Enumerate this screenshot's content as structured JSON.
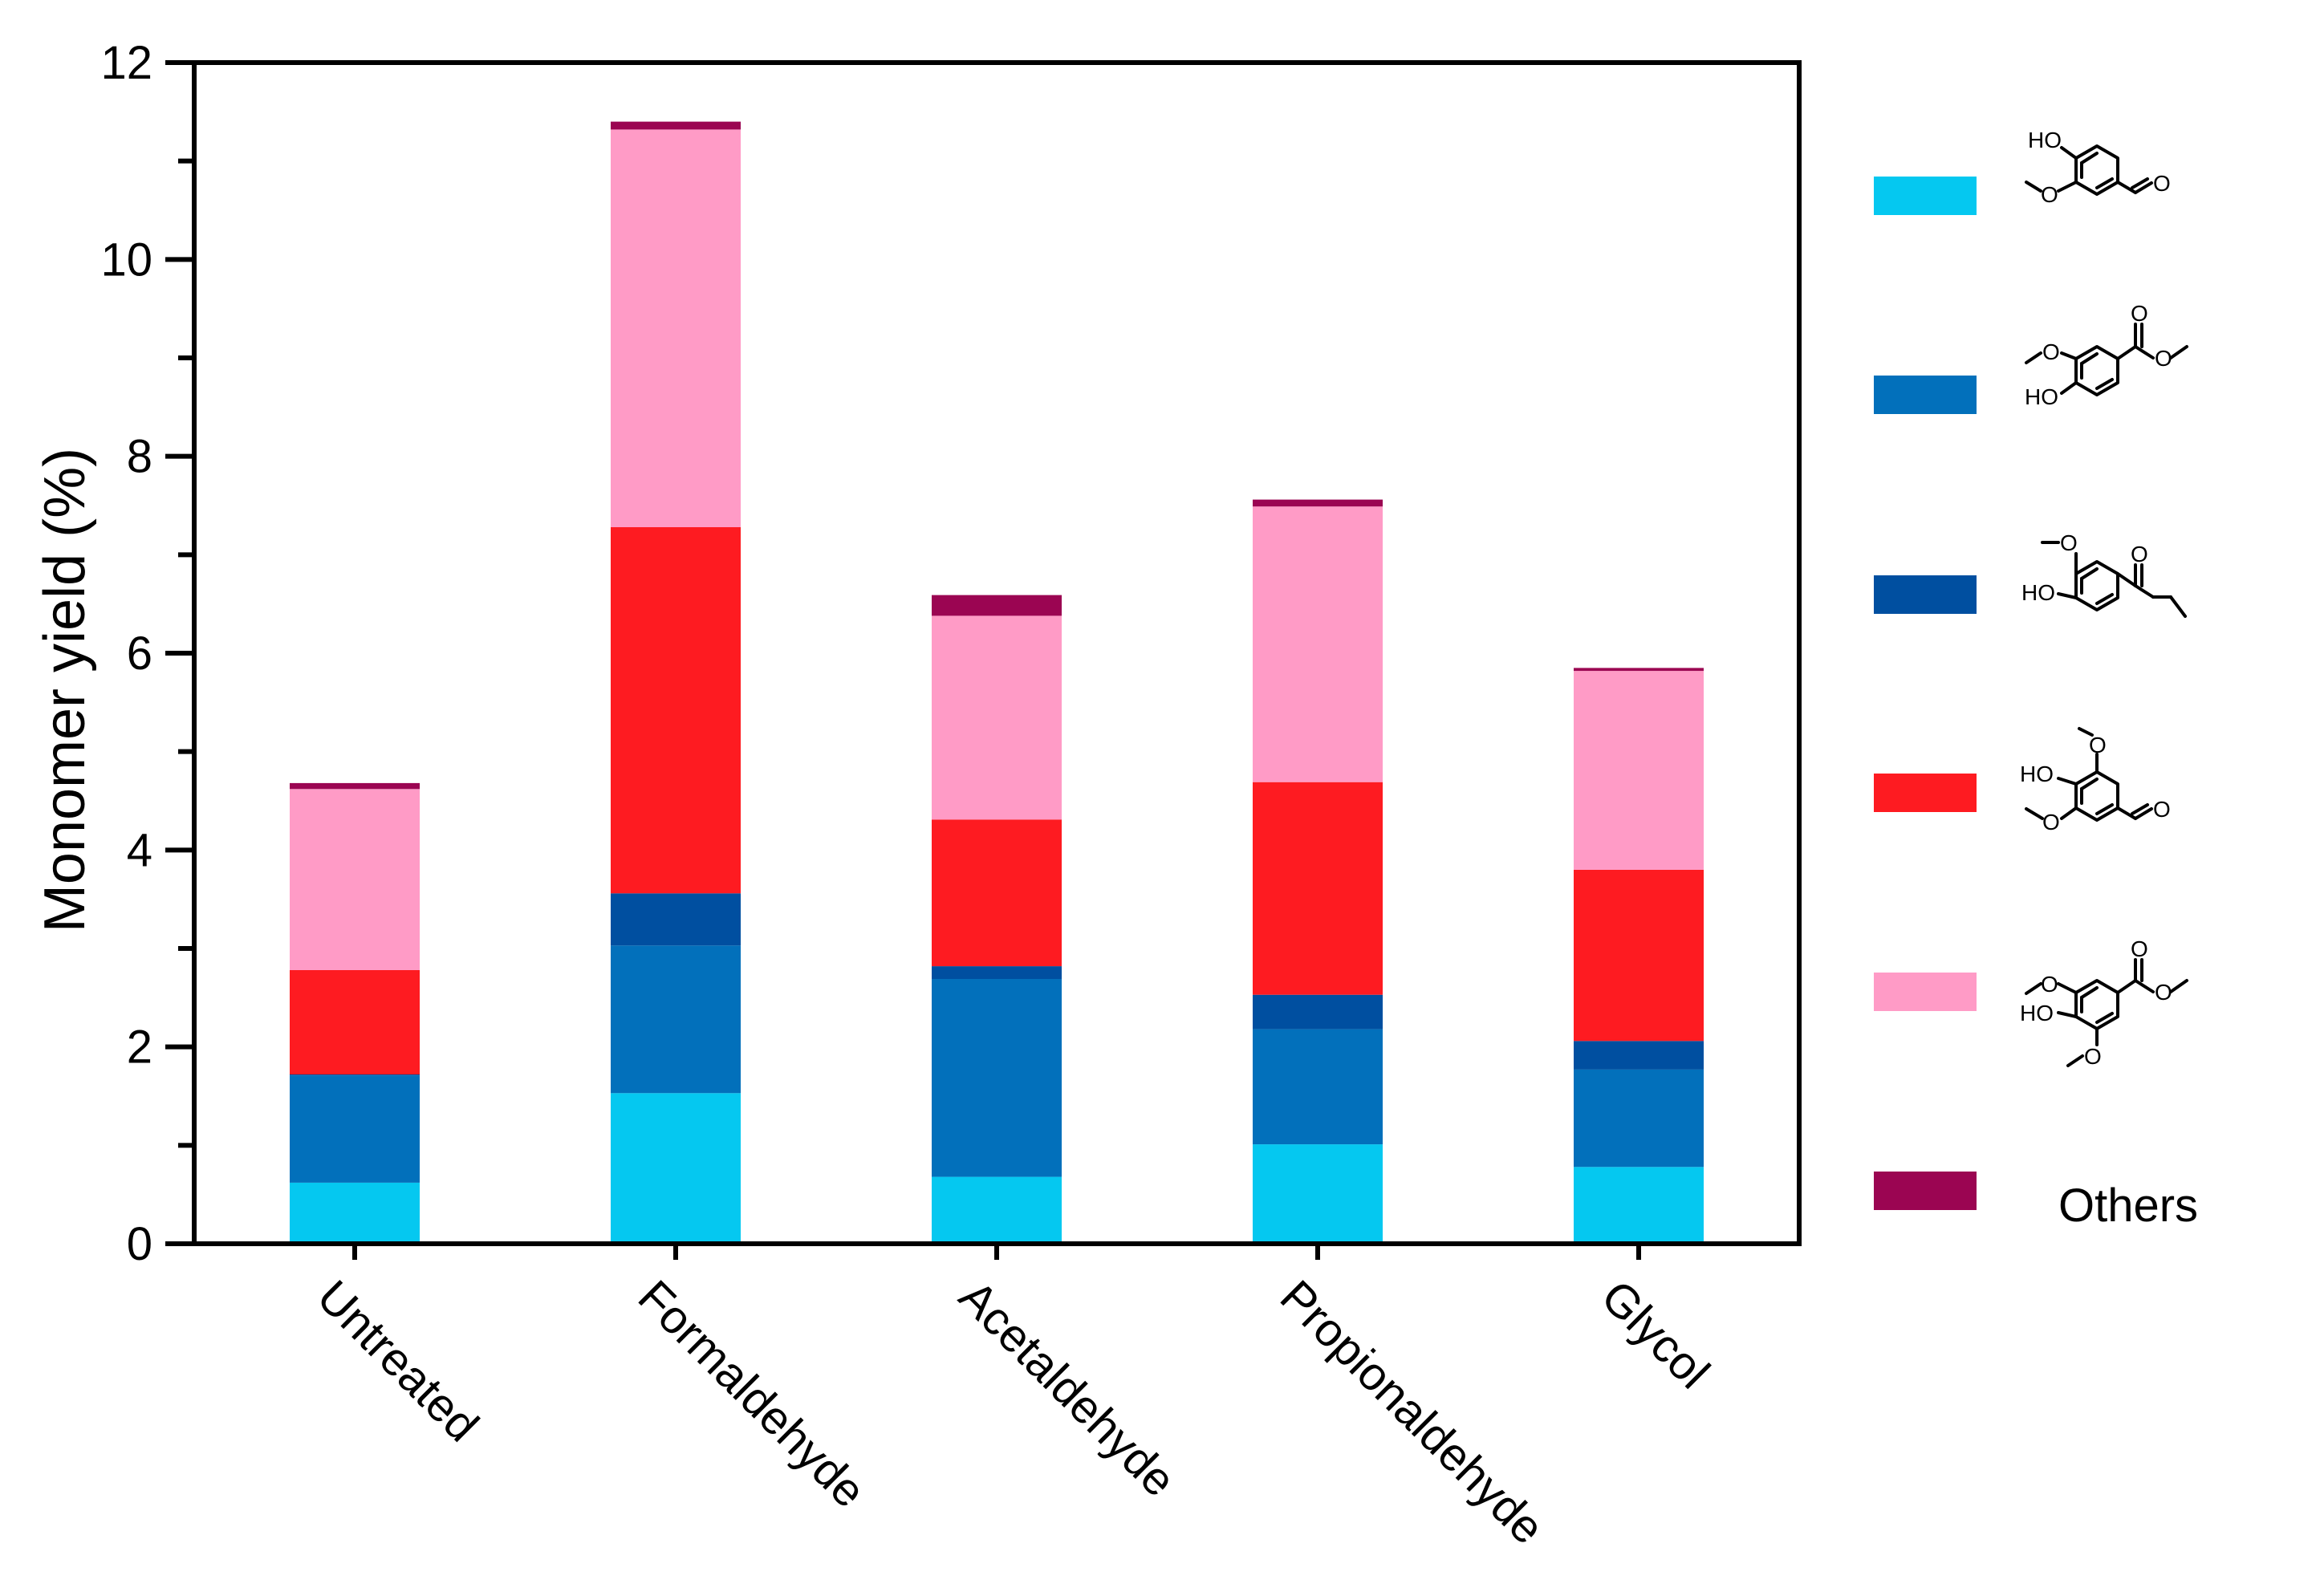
{
  "chart_data": {
    "type": "bar",
    "stacked": true,
    "ylabel": "Monomer yield (%)",
    "xlabel": "",
    "ylim": [
      0,
      12
    ],
    "yticks": [
      0,
      2,
      4,
      6,
      8,
      10,
      12
    ],
    "ytick_labels": [
      "0",
      "2",
      "4",
      "6",
      "8",
      "10",
      "12"
    ],
    "categories": [
      "Untreated",
      "Formaldehyde",
      "Acetaldehyde",
      "Propionaldehyde",
      "Glycol"
    ],
    "series": [
      {
        "name": "Vanillin",
        "color": "#05C8F0",
        "values": [
          0.62,
          1.53,
          0.68,
          1.01,
          0.78
        ]
      },
      {
        "name": "Methyl vanillate",
        "color": "#0270BB",
        "values": [
          1.09,
          1.5,
          2.01,
          1.17,
          0.99
        ]
      },
      {
        "name": "Butyrovanillone",
        "color": "#004FA0",
        "values": [
          0.01,
          0.53,
          0.13,
          0.35,
          0.29
        ]
      },
      {
        "name": "Syringaldehyde",
        "color": "#FE1B21",
        "values": [
          1.06,
          3.72,
          1.49,
          2.16,
          1.74
        ]
      },
      {
        "name": "Methyl syringate",
        "color": "#FF9BC6",
        "values": [
          1.84,
          4.04,
          2.07,
          2.8,
          2.02
        ]
      },
      {
        "name": "Others",
        "color": "#9B0552",
        "values": [
          0.06,
          0.08,
          0.21,
          0.07,
          0.03
        ]
      }
    ],
    "legend": {
      "placement": "right",
      "entries": [
        {
          "series": "Vanillin",
          "icon": "vanillin-structure-icon",
          "atom_labels": [
            "HO",
            "O",
            "O"
          ]
        },
        {
          "series": "Methyl vanillate",
          "icon": "methyl-vanillate-structure-icon",
          "atom_labels": [
            "O",
            "HO",
            "O",
            "O"
          ]
        },
        {
          "series": "Butyrovanillone",
          "icon": "butyrovanillone-structure-icon",
          "atom_labels": [
            "O",
            "HO",
            "O"
          ]
        },
        {
          "series": "Syringaldehyde",
          "icon": "syringaldehyde-structure-icon",
          "atom_labels": [
            "O",
            "HO",
            "O",
            "O"
          ]
        },
        {
          "series": "Methyl syringate",
          "icon": "methyl-syringate-structure-icon",
          "atom_labels": [
            "O",
            "HO",
            "O",
            "O",
            "O"
          ]
        },
        {
          "series": "Others",
          "icon": "",
          "label": "Others"
        }
      ]
    }
  }
}
